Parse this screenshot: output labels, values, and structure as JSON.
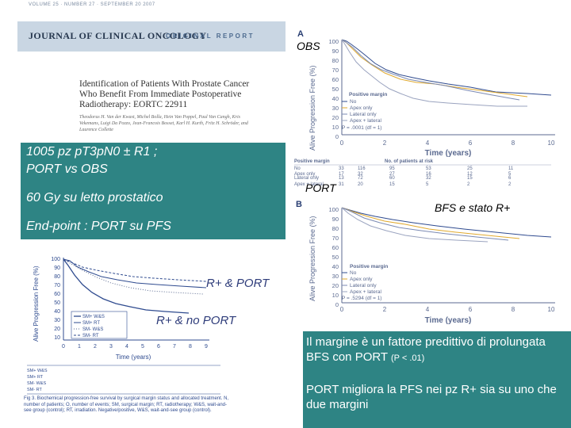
{
  "journal": {
    "volume_line": "VOLUME 25 · NUMBER 27 · SEPTEMBER 20 2007",
    "name": "JOURNAL OF CLINICAL ONCOLOGY",
    "section": "ORIGINAL REPORT",
    "title": "Identification of Patients With Prostate Cancer Who Benefit From Immediate Postoperative Radiotherapy: EORTC 22911",
    "authors": "Theodorus H. Van der Kwast, Michel Bolla, Hein Van Poppel, Paul Van Cangh, Kris Vekemans, Luigi Da Pozzo, Jean-Francois Bosset, Karl H. Kurth, Fritz H. Schröder, and Laurence Collette"
  },
  "slide": {
    "study": "1005 pz  pT3pN0 ± R1 ;",
    "arms": "PORT vs OBS",
    "dose": "60 Gy su  letto prostatico",
    "endpoint": "End-point : PORT su PFS",
    "label_obs": "OBS",
    "label_port": "PORT",
    "label_bfs": "BFS e stato R+",
    "label_r_port": "R+ & PORT",
    "label_r_noport": "R+ & no  PORT",
    "conclusion1_main": "Il margine è un fattore predittivo di prolungata BFS con PORT ",
    "conclusion1_p": " (P < .01)",
    "conclusion2": "PORT migliora la PFS nei pz  R+ sia su uno che due margini"
  },
  "figures": {
    "panel_a": "A",
    "panel_b": "B",
    "y_axis_label": "Alive Progression Free (%)",
    "x_axis_label": "Time (years)",
    "x_ticks": [
      "0",
      "2",
      "4",
      "6",
      "8",
      "10"
    ],
    "y_ticks": [
      "100",
      "90",
      "80",
      "70",
      "60",
      "50",
      "40",
      "30",
      "20",
      "10",
      "0"
    ],
    "legend_title": "Positive margin",
    "legend_items": [
      "No",
      "Apex only",
      "Lateral only",
      "Apex + lateral"
    ],
    "p_value_a": "P = .0001 (df = 1)",
    "p_value_b": "P = .5294 (df = 1)",
    "risk_header": "No. of patients at risk",
    "risk_rows": [
      {
        "label": "No",
        "o": "33",
        "n": "116",
        "values": [
          "95",
          "53",
          "25",
          "11"
        ]
      },
      {
        "label": "Apex only",
        "o": "17",
        "n": "32",
        "values": [
          "27",
          "16",
          "12",
          "5"
        ]
      },
      {
        "label": "Lateral only",
        "o": "13",
        "n": "72",
        "values": [
          "60",
          "32",
          "15",
          "6"
        ]
      },
      {
        "label": "Apex + lateral",
        "o": "31",
        "n": "20",
        "values": [
          "15",
          "5",
          "2",
          "2"
        ]
      }
    ],
    "left_y_label": "Alive Progression Free (%)",
    "left_x_label": "Time (years)",
    "left_x_ticks": [
      "0",
      "1",
      "2",
      "3",
      "4",
      "5",
      "6",
      "7",
      "8",
      "9"
    ],
    "left_legend": [
      "SM+ W&S",
      "SM+ RT",
      "SM- W&S",
      "SM- RT"
    ],
    "left_caption": "Fig 3. Biochemical progression-free survival by surgical margin status and allocated treatment. N, number of patients; O, number of events; SM, surgical margin; RT, radiotherapy; W&S, wait-and-see group (control); RT, irradiation. Negative/positive, W&S, wait-and-see group (control)."
  }
}
